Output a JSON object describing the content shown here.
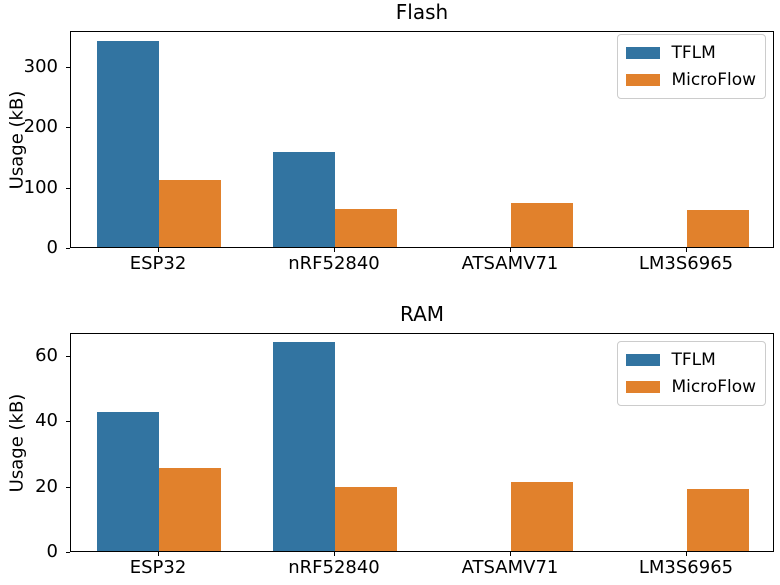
{
  "chart_data": [
    {
      "type": "bar",
      "title": "Flash",
      "ylabel": "Usage (kB)",
      "categories": [
        "ESP32",
        "nRF52840",
        "ATSAMV71",
        "LM3S6965"
      ],
      "series": [
        {
          "name": "TFLM",
          "color": "#3274a1",
          "values": [
            341.6,
            157.7,
            null,
            null
          ]
        },
        {
          "name": "MicroFlow",
          "color": "#e1812c",
          "values": [
            110.6,
            62.4,
            73.0,
            62.0
          ]
        }
      ],
      "ylim": [
        0,
        360
      ],
      "yticks": [
        0,
        100,
        200,
        300
      ],
      "legend_position": "upper right",
      "grid": false
    },
    {
      "type": "bar",
      "title": "RAM",
      "ylabel": "Usage (kB)",
      "categories": [
        "ESP32",
        "nRF52840",
        "ATSAMV71",
        "LM3S6965"
      ],
      "series": [
        {
          "name": "TFLM",
          "color": "#3274a1",
          "values": [
            42.6,
            63.8,
            null,
            null
          ]
        },
        {
          "name": "MicroFlow",
          "color": "#e1812c",
          "values": [
            25.4,
            19.5,
            21.1,
            19.0
          ]
        }
      ],
      "ylim": [
        0,
        67
      ],
      "yticks": [
        0,
        20,
        40,
        60
      ],
      "legend_position": "upper right",
      "grid": false
    }
  ]
}
